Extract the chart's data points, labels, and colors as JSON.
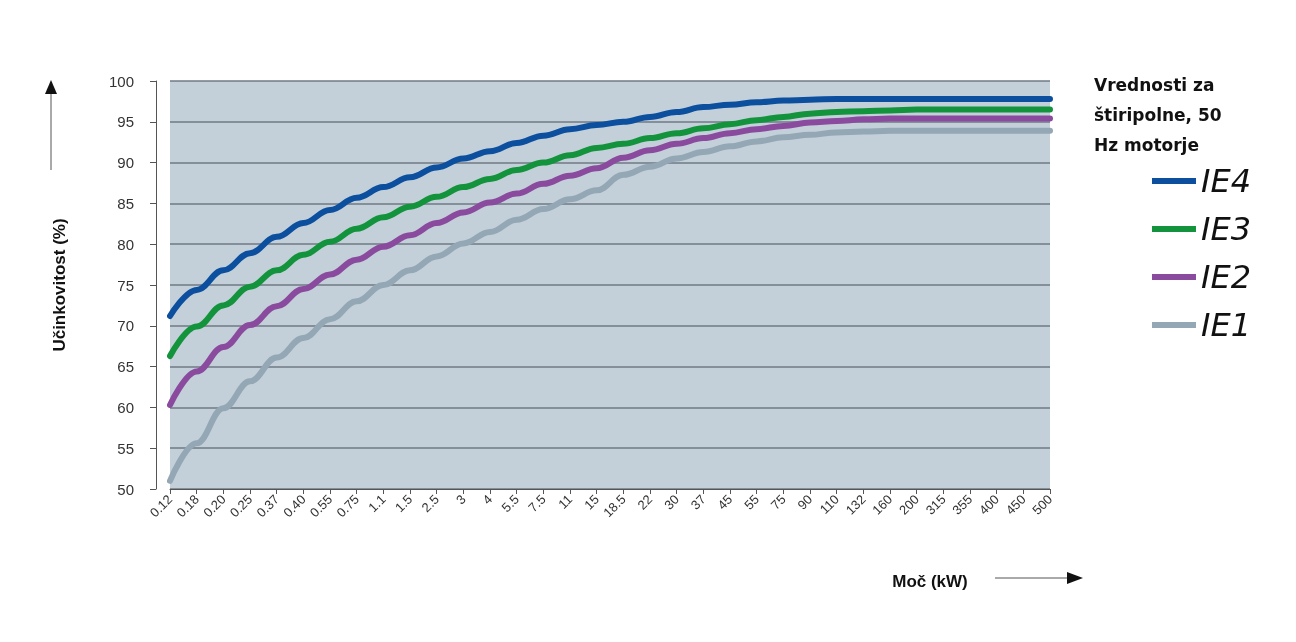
{
  "chart_data": {
    "type": "line",
    "xlabel": "Moč (kW)",
    "ylabel": "Učinkovitost (%)",
    "legend_title": "Vrednosti za štiripolne, 50 Hz motorje",
    "categories": [
      "0.12",
      "0.18",
      "0.20",
      "0.25",
      "0.37",
      "0.40",
      "0.55",
      "0.75",
      "1.1",
      "1.5",
      "2.5",
      "3",
      "4",
      "5.5",
      "7.5",
      "11",
      "15",
      "18.5",
      "22",
      "30",
      "37",
      "45",
      "55",
      "75",
      "90",
      "110",
      "132",
      "160",
      "200",
      "315",
      "355",
      "400",
      "450",
      "500"
    ],
    "series": [
      {
        "name": "IE4",
        "color": "#0b4f9e",
        "values": [
          71.2,
          74.4,
          76.8,
          78.9,
          80.9,
          82.6,
          84.2,
          85.7,
          87.0,
          88.2,
          89.4,
          90.5,
          91.4,
          92.4,
          93.3,
          94.1,
          94.6,
          95.0,
          95.6,
          96.2,
          96.8,
          97.1,
          97.4,
          97.6,
          97.7,
          97.8,
          97.8,
          97.8,
          97.8,
          97.8,
          97.8,
          97.8,
          97.8,
          97.8
        ]
      },
      {
        "name": "IE3",
        "color": "#13943c",
        "values": [
          66.3,
          69.9,
          72.5,
          74.8,
          76.8,
          78.7,
          80.3,
          81.9,
          83.3,
          84.6,
          85.8,
          87.0,
          88.0,
          89.1,
          90.0,
          90.9,
          91.8,
          92.3,
          93.0,
          93.6,
          94.2,
          94.7,
          95.2,
          95.6,
          96.0,
          96.2,
          96.3,
          96.4,
          96.5,
          96.5,
          96.5,
          96.5,
          96.5,
          96.5
        ]
      },
      {
        "name": "IE2",
        "color": "#8a4b9e",
        "values": [
          60.3,
          64.4,
          67.4,
          70.1,
          72.4,
          74.5,
          76.3,
          78.1,
          79.7,
          81.1,
          82.6,
          83.9,
          85.1,
          86.2,
          87.4,
          88.4,
          89.3,
          90.6,
          91.5,
          92.3,
          93.0,
          93.6,
          94.1,
          94.5,
          94.9,
          95.1,
          95.3,
          95.4,
          95.4,
          95.4,
          95.4,
          95.4,
          95.4,
          95.4
        ]
      },
      {
        "name": "IE1",
        "color": "#94a7b5",
        "values": [
          51.0,
          55.6,
          59.9,
          63.2,
          66.1,
          68.5,
          70.8,
          73.0,
          75.0,
          76.8,
          78.5,
          80.1,
          81.5,
          83.0,
          84.3,
          85.5,
          86.6,
          88.5,
          89.5,
          90.5,
          91.3,
          92.0,
          92.6,
          93.1,
          93.4,
          93.7,
          93.8,
          93.9,
          93.9,
          93.9,
          93.9,
          93.9,
          93.9,
          93.9
        ]
      }
    ],
    "ylim": [
      50,
      100
    ],
    "yticks": [
      50,
      55,
      60,
      65,
      70,
      75,
      80,
      85,
      90,
      95,
      100
    ],
    "grid": "y",
    "legend": "right",
    "marker": "none",
    "line_style": "solid"
  }
}
